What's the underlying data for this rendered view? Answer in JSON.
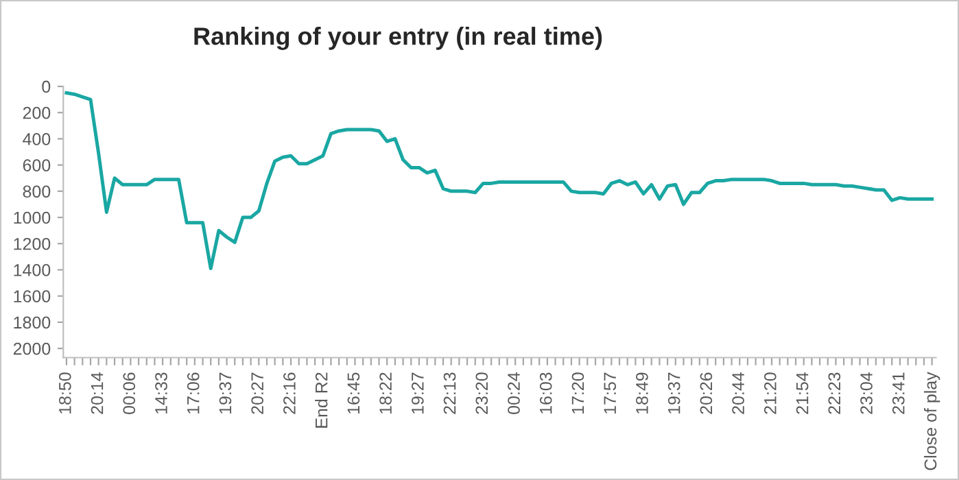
{
  "chart_data": {
    "type": "line",
    "title": "Ranking of your entry (in real time)",
    "categories": [
      "18:50",
      null,
      null,
      null,
      "20:14",
      null,
      null,
      null,
      "00:06",
      null,
      null,
      null,
      "14:33",
      null,
      null,
      null,
      "17:06",
      null,
      null,
      null,
      "19:37",
      null,
      null,
      null,
      "20:27",
      null,
      null,
      null,
      "22:16",
      null,
      null,
      null,
      "End R2",
      null,
      null,
      null,
      "16:45",
      null,
      null,
      null,
      "18:22",
      null,
      null,
      null,
      "19:27",
      null,
      null,
      null,
      "22:13",
      null,
      null,
      null,
      "23:20",
      null,
      null,
      null,
      "00:24",
      null,
      null,
      null,
      "16:03",
      null,
      null,
      null,
      "17:20",
      null,
      null,
      null,
      "17:57",
      null,
      null,
      null,
      "18:49",
      null,
      null,
      null,
      "19:37",
      null,
      null,
      null,
      "20:26",
      null,
      null,
      null,
      "20:44",
      null,
      null,
      null,
      "21:20",
      null,
      null,
      null,
      "21:54",
      null,
      null,
      null,
      "22:23",
      null,
      null,
      null,
      "23:04",
      null,
      null,
      null,
      "23:41",
      null,
      null,
      null,
      "Close of play"
    ],
    "series": [
      {
        "color": "#1aa7a3",
        "values": [
          50,
          60,
          80,
          100,
          510,
          960,
          700,
          750,
          750,
          750,
          750,
          710,
          710,
          710,
          710,
          1040,
          1040,
          1040,
          1390,
          1100,
          1150,
          1190,
          1000,
          1000,
          950,
          740,
          570,
          540,
          530,
          590,
          590,
          560,
          530,
          360,
          340,
          330,
          330,
          330,
          330,
          340,
          420,
          400,
          560,
          620,
          620,
          660,
          640,
          780,
          800,
          800,
          800,
          810,
          740,
          740,
          730,
          730,
          730,
          730,
          730,
          730,
          730,
          730,
          730,
          800,
          810,
          810,
          810,
          820,
          740,
          720,
          750,
          730,
          820,
          750,
          860,
          760,
          750,
          900,
          810,
          810,
          740,
          720,
          720,
          710,
          710,
          710,
          710,
          710,
          720,
          740,
          740,
          740,
          740,
          750,
          750,
          750,
          750,
          760,
          760,
          770,
          780,
          790,
          790,
          870,
          850,
          860,
          860,
          860,
          860
        ]
      }
    ],
    "ylim": [
      2070,
      0
    ],
    "yticks": [
      0,
      200,
      400,
      600,
      800,
      1000,
      1200,
      1400,
      1600,
      1800,
      2000
    ],
    "grid": false,
    "marker": "none",
    "line_style": "solid"
  }
}
